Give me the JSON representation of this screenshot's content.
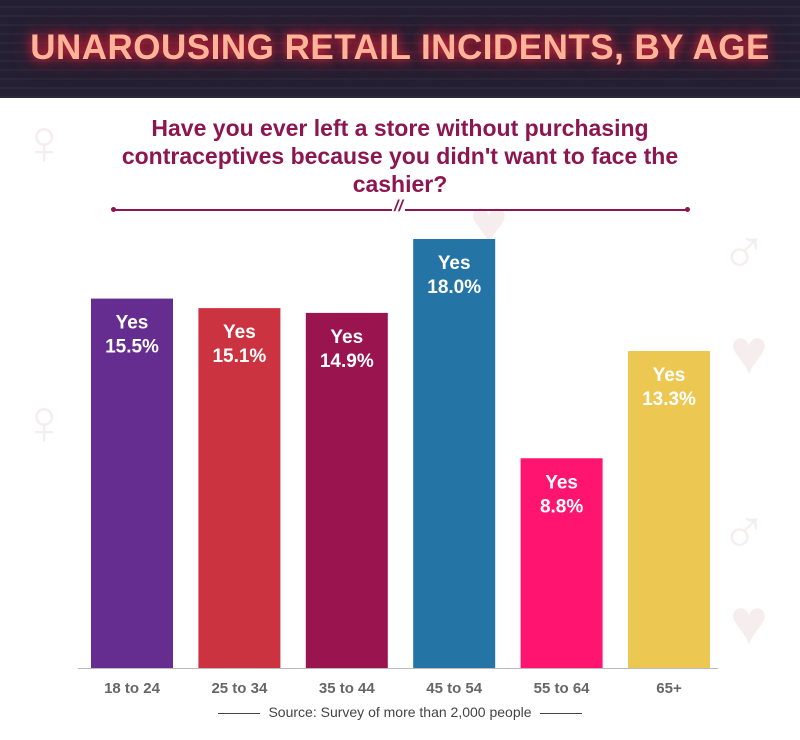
{
  "header": {
    "title": "UNAROUSING RETAIL INCIDENTS, BY AGE"
  },
  "question": "Have you ever left a store without purchasing contraceptives because you didn't want to face the cashier?",
  "source": "Source: Survey of more than 2,000 people",
  "chart_data": {
    "type": "bar",
    "title": "Have you ever left a store without purchasing contraceptives because you didn't want to face the cashier?",
    "categories": [
      "18 to 24",
      "25 to 34",
      "35 to 44",
      "45 to 54",
      "55 to 64",
      "65+"
    ],
    "values": [
      15.5,
      15.1,
      14.9,
      18.0,
      8.8,
      13.3
    ],
    "value_prefix": "Yes",
    "value_labels": [
      "15.5%",
      "15.1%",
      "14.9%",
      "18.0%",
      "8.8%",
      "13.3%"
    ],
    "colors": [
      "#662d91",
      "#cc3340",
      "#9a1450",
      "#2475a6",
      "#ff1470",
      "#ecc752"
    ],
    "xlabel": "",
    "ylabel": "",
    "ylim": [
      0,
      18
    ],
    "grid": false,
    "legend": "none"
  }
}
